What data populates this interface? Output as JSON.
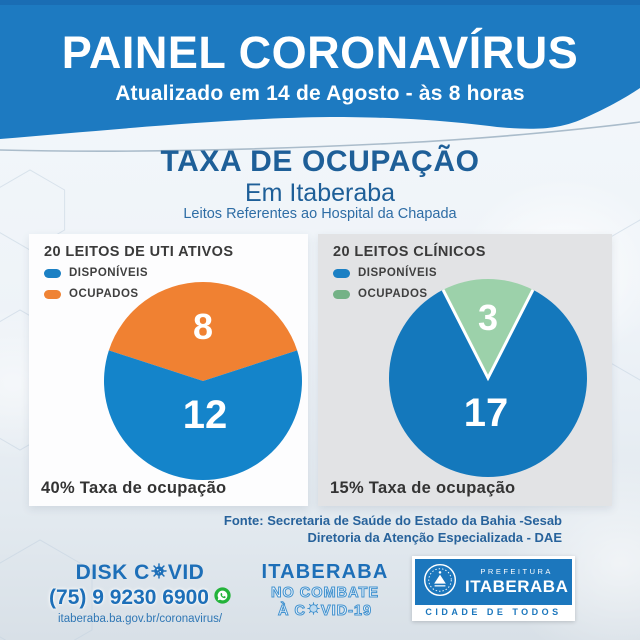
{
  "colors": {
    "brand_blue": "#1d7ac1",
    "brand_blue_dark": "#1a6db4",
    "dark_blue_text": "#1e5f98",
    "footer_blue": "#1d6fb8",
    "whatsapp_green": "#23b33a",
    "card_text": "#3a3a3a"
  },
  "header": {
    "title": "PAINEL CORONAVÍRUS",
    "subtitle": "Atualizado em 14 de Agosto - às 8 horas"
  },
  "section": {
    "title": "TAXA DE OCUPAÇÃO",
    "subtitle": "Em Itaberaba",
    "note": "Leitos Referentes ao Hospital da Chapada"
  },
  "chart_data": [
    {
      "type": "pie",
      "title": "20 LEITOS DE UTI ATIVOS",
      "total_beds": 20,
      "legend_position": "top-left",
      "slices": [
        {
          "label": "DISPONÍVEIS",
          "value": 12,
          "color": "#1484ca",
          "legend_color": "#1b80c4"
        },
        {
          "label": "OCUPADOS",
          "value": 8,
          "color": "#f08132",
          "legend_color": "#ef8335"
        }
      ],
      "occupied_wedge_centered_top": true,
      "footer": "40% Taxa de ocupação"
    },
    {
      "type": "pie",
      "title": "20 LEITOS CLÍNICOS",
      "total_beds": 20,
      "legend_position": "top-left",
      "slices": [
        {
          "label": "DISPONÍVEIS",
          "value": 17,
          "color": "#1478bc",
          "legend_color": "#1b80c4"
        },
        {
          "label": "OCUPADOS",
          "value": 3,
          "color": "#9cd1aa",
          "legend_color": "#74b286"
        }
      ],
      "occupied_wedge_centered_top": true,
      "footer": "15% Taxa de ocupação"
    }
  ],
  "source": {
    "line1": "Fonte: Secretaria de Saúde do Estado da Bahia -Sesab",
    "line2": "Diretoria da Atenção Especializada - DAE"
  },
  "footer": {
    "disk": {
      "label_pre": "DISK C",
      "label_post": "VID",
      "phone": "(75) 9 9230 6900",
      "url": "itaberaba.ba.gov.br/coronavirus/"
    },
    "campaign": {
      "line1": "ITABERABA",
      "line2": "NO COMBATE",
      "line3_pre": "À C",
      "line3_post": "VID-19"
    },
    "logo": {
      "top": "PREFEITURA",
      "name": "ITABERABA",
      "tagline": "CIDADE DE TODOS"
    }
  }
}
